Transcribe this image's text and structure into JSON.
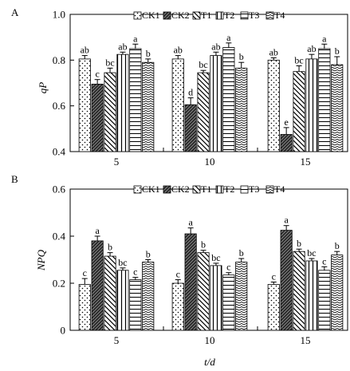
{
  "chart_data": [
    {
      "panel": "A",
      "type": "bar",
      "ylabel": "qP",
      "ylim": [
        0.4,
        1.0
      ],
      "yticks": [
        "0.4",
        "0.6",
        "0.8",
        "1.0"
      ],
      "categories": [
        "5",
        "10",
        "15"
      ],
      "legend_placement": "top",
      "series": [
        {
          "name": "CK1",
          "values": [
            0.805,
            0.805,
            0.8
          ],
          "errors": [
            0.015,
            0.015,
            0.01
          ],
          "labels": [
            "ab",
            "ab",
            "ab"
          ]
        },
        {
          "name": "CK2",
          "values": [
            0.695,
            0.605,
            0.475
          ],
          "errors": [
            0.02,
            0.03,
            0.03
          ],
          "labels": [
            "c",
            "d",
            "e"
          ]
        },
        {
          "name": "T1",
          "values": [
            0.745,
            0.745,
            0.75
          ],
          "errors": [
            0.02,
            0.01,
            0.025
          ],
          "labels": [
            "bc",
            "bc",
            "bc"
          ]
        },
        {
          "name": "T2",
          "values": [
            0.825,
            0.82,
            0.805
          ],
          "errors": [
            0.01,
            0.015,
            0.02
          ],
          "labels": [
            "ab",
            "ab",
            "ab"
          ]
        },
        {
          "name": "T3",
          "values": [
            0.85,
            0.855,
            0.85
          ],
          "errors": [
            0.02,
            0.02,
            0.02
          ],
          "labels": [
            "a",
            "a",
            "a"
          ]
        },
        {
          "name": "T4",
          "values": [
            0.79,
            0.765,
            0.78
          ],
          "errors": [
            0.015,
            0.025,
            0.035
          ],
          "labels": [
            "b",
            "b",
            "b"
          ]
        }
      ]
    },
    {
      "panel": "B",
      "type": "bar",
      "xlabel": "t/d",
      "ylabel": "NPQ",
      "ylim": [
        0.0,
        0.6
      ],
      "yticks": [
        "0",
        "0.2",
        "0.4",
        "0.6"
      ],
      "categories": [
        "5",
        "10",
        "15"
      ],
      "legend_placement": "top",
      "series": [
        {
          "name": "CK1",
          "values": [
            0.195,
            0.2,
            0.195
          ],
          "errors": [
            0.025,
            0.015,
            0.01
          ],
          "labels": [
            "c",
            "c",
            "c"
          ]
        },
        {
          "name": "CK2",
          "values": [
            0.38,
            0.41,
            0.425
          ],
          "errors": [
            0.02,
            0.025,
            0.02
          ],
          "labels": [
            "a",
            "a",
            "a"
          ]
        },
        {
          "name": "T1",
          "values": [
            0.315,
            0.33,
            0.335
          ],
          "errors": [
            0.015,
            0.01,
            0.01
          ],
          "labels": [
            "b",
            "b",
            "b"
          ]
        },
        {
          "name": "T2",
          "values": [
            0.255,
            0.275,
            0.295
          ],
          "errors": [
            0.01,
            0.01,
            0.01
          ],
          "labels": [
            "bc",
            "bc",
            "bc"
          ]
        },
        {
          "name": "T3",
          "values": [
            0.215,
            0.235,
            0.255
          ],
          "errors": [
            0.01,
            0.01,
            0.015
          ],
          "labels": [
            "c",
            "c",
            "c"
          ]
        },
        {
          "name": "T4",
          "values": [
            0.29,
            0.29,
            0.32
          ],
          "errors": [
            0.01,
            0.015,
            0.015
          ],
          "labels": [
            "b",
            "b",
            "b"
          ]
        }
      ]
    }
  ]
}
